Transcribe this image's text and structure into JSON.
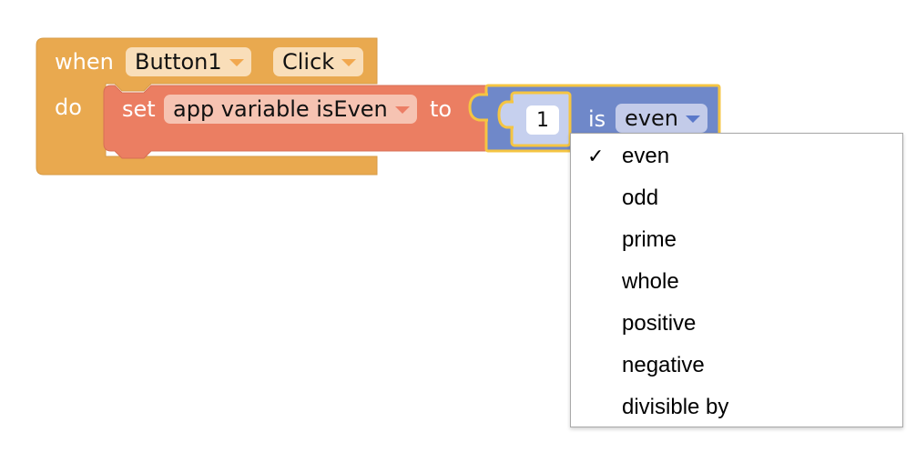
{
  "event_block": {
    "when_label": "when",
    "component": "Button1",
    "event": "Click",
    "do_label": "do",
    "color": "#e9a94f"
  },
  "set_block": {
    "set_label": "set",
    "variable": "app variable isEven",
    "to_label": "to",
    "color": "#eb7e62"
  },
  "math_block": {
    "number": "1",
    "is_label": "is",
    "selected": "even",
    "color": "#6f88c9",
    "highlight": "#f5c542"
  },
  "dropdown": {
    "check_mark": "✓",
    "selected_index": 0,
    "items": [
      {
        "label": "even"
      },
      {
        "label": "odd"
      },
      {
        "label": "prime"
      },
      {
        "label": "whole"
      },
      {
        "label": "positive"
      },
      {
        "label": "negative"
      },
      {
        "label": "divisible by"
      }
    ]
  }
}
